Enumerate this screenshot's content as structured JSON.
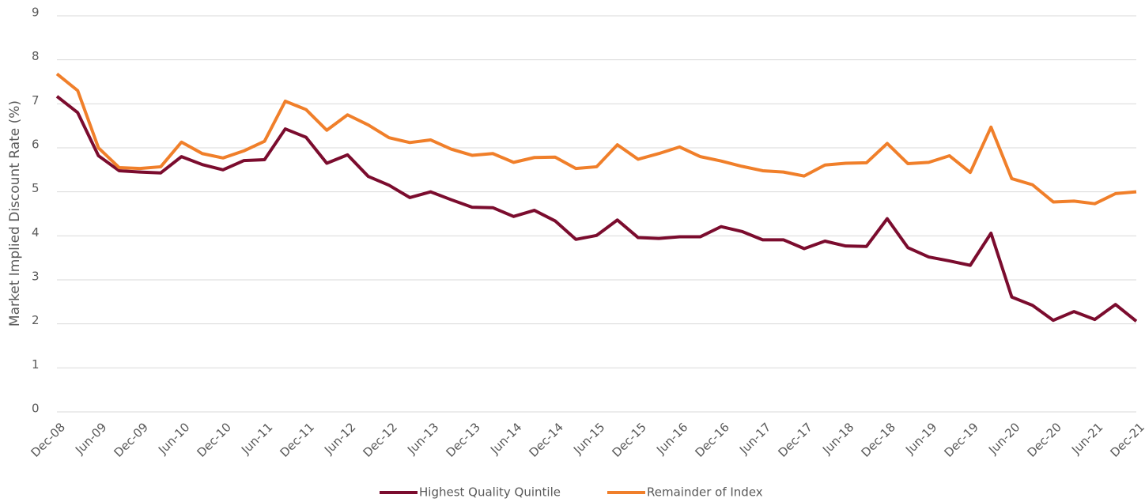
{
  "chart_data": {
    "type": "line",
    "y_label": "Market Implied Discount Rate (%)",
    "categories": [
      "Dec-08",
      null,
      "Jun-09",
      null,
      "Dec-09",
      null,
      "Jun-10",
      null,
      "Dec-10",
      null,
      "Jun-11",
      null,
      "Dec-11",
      null,
      "Jun-12",
      null,
      "Dec-12",
      null,
      "Jun-13",
      null,
      "Dec-13",
      null,
      "Jun-14",
      null,
      "Dec-14",
      null,
      "Jun-15",
      null,
      "Dec-15",
      null,
      "Jun-16",
      null,
      "Dec-16",
      null,
      "Jun-17",
      null,
      "Dec-17",
      null,
      "Jun-18",
      null,
      "Dec-18",
      null,
      "Jun-19",
      null,
      "Dec-19",
      null,
      "Jun-20",
      null,
      "Dec-20",
      null,
      "Jun-21",
      null,
      "Dec-21"
    ],
    "series": [
      {
        "name": "Highest Quality Quintile",
        "color": "#7b0c2e",
        "values": [
          7.17,
          6.8,
          5.82,
          5.48,
          5.45,
          5.43,
          5.8,
          5.62,
          5.5,
          5.71,
          5.73,
          6.43,
          6.24,
          5.65,
          5.84,
          5.35,
          5.15,
          4.87,
          5.0,
          4.82,
          4.65,
          4.64,
          4.44,
          4.58,
          4.34,
          3.92,
          4.01,
          4.36,
          3.96,
          3.94,
          3.98,
          3.98,
          4.21,
          4.1,
          3.91,
          3.91,
          3.71,
          3.88,
          3.77,
          3.76,
          4.39,
          3.73,
          3.52,
          3.43,
          3.33,
          4.06,
          2.61,
          2.42,
          2.08,
          2.28,
          2.1,
          2.44,
          2.06
        ]
      },
      {
        "name": "Remainder of Index",
        "color": "#f07f2a",
        "values": [
          7.68,
          7.3,
          6.0,
          5.55,
          5.53,
          5.57,
          6.13,
          5.87,
          5.77,
          5.93,
          6.15,
          7.06,
          6.87,
          6.4,
          6.75,
          6.52,
          6.23,
          6.12,
          6.18,
          5.97,
          5.83,
          5.87,
          5.67,
          5.78,
          5.79,
          5.53,
          5.57,
          6.07,
          5.74,
          5.87,
          6.02,
          5.8,
          5.7,
          5.58,
          5.48,
          5.45,
          5.36,
          5.61,
          5.65,
          5.66,
          6.1,
          5.64,
          5.67,
          5.82,
          5.44,
          6.47,
          5.3,
          5.16,
          4.77,
          4.79,
          4.73,
          4.96,
          5.0
        ]
      }
    ],
    "ylim": [
      0,
      9
    ],
    "yticks": [
      0,
      1,
      2,
      3,
      4,
      5,
      6,
      7,
      8,
      9
    ],
    "grid": true,
    "legend": "bottom"
  }
}
